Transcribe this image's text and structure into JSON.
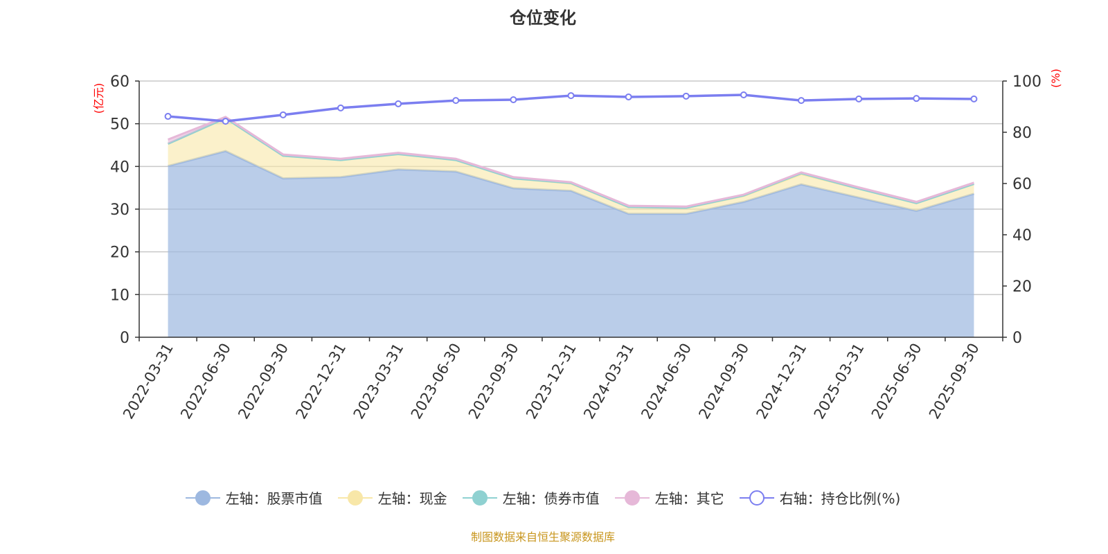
{
  "chart_data": {
    "type": "area",
    "title": "仓位变化",
    "ylabel_left": "(亿元)",
    "ylabel_right": "(%)",
    "ylim_left": [
      0,
      60
    ],
    "ylim_right": [
      0,
      100
    ],
    "yticks_left": [
      0,
      10,
      20,
      30,
      40,
      50,
      60
    ],
    "yticks_right": [
      0,
      20,
      40,
      60,
      80,
      100
    ],
    "grid": true,
    "legend_position": "bottom",
    "categories": [
      "2022-03-31",
      "2022-06-30",
      "2022-09-30",
      "2022-12-31",
      "2023-03-31",
      "2023-06-30",
      "2023-09-30",
      "2023-12-31",
      "2024-03-31",
      "2024-06-30",
      "2024-09-30",
      "2024-12-31",
      "2025-03-31",
      "2025-06-30",
      "2025-09-30"
    ],
    "series": [
      {
        "name": "左轴：股票市值",
        "axis": "left",
        "stack": true,
        "color": "#9db8e0",
        "values": [
          40.1,
          43.6,
          37.2,
          37.5,
          39.3,
          38.8,
          34.9,
          34.3,
          28.9,
          28.9,
          31.7,
          35.8,
          32.7,
          29.6,
          33.6
        ]
      },
      {
        "name": "左轴：现金",
        "axis": "left",
        "stack": true,
        "color": "#f8e7a8",
        "values": [
          5.2,
          7.7,
          5.3,
          4.0,
          3.6,
          2.7,
          2.3,
          1.7,
          1.6,
          1.4,
          1.4,
          2.4,
          2.1,
          1.8,
          2.3
        ]
      },
      {
        "name": "左轴：债券市值",
        "axis": "left",
        "stack": true,
        "color": "#8fd1d1",
        "values": [
          0,
          0,
          0,
          0,
          0,
          0,
          0,
          0.1,
          0,
          0,
          0.1,
          0.2,
          0,
          0,
          0
        ]
      },
      {
        "name": "左轴：其它",
        "axis": "left",
        "stack": true,
        "color": "#e6b8d8",
        "values": [
          1.0,
          0.3,
          0.3,
          0.3,
          0.3,
          0.3,
          0.3,
          0.2,
          0.3,
          0.3,
          0.2,
          0.2,
          0.3,
          0.3,
          0.3
        ]
      },
      {
        "name": "右轴：持仓比例(%)",
        "axis": "right",
        "stack": false,
        "color": "#7b7ef0",
        "values": [
          86.2,
          84.3,
          86.8,
          89.5,
          91.1,
          92.4,
          92.7,
          94.3,
          93.8,
          94.1,
          94.6,
          92.4,
          93.0,
          93.2,
          93.0
        ]
      }
    ]
  },
  "footer": "制图数据来自恒生聚源数据库"
}
